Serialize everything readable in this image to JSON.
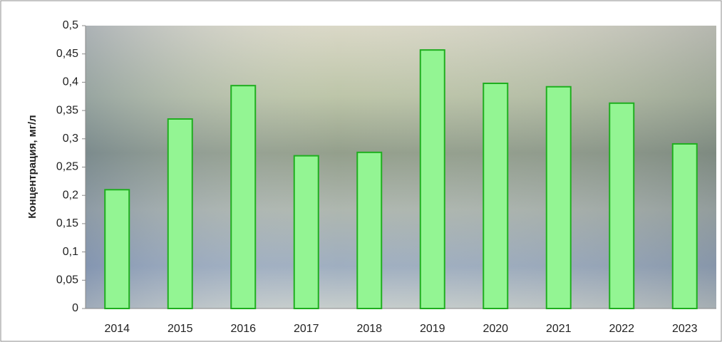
{
  "chart_data": {
    "type": "bar",
    "y_label": "Концентрация, мг/л",
    "categories": [
      "2014",
      "2015",
      "2016",
      "2017",
      "2018",
      "2019",
      "2020",
      "2021",
      "2022",
      "2023"
    ],
    "values": [
      0.21,
      0.335,
      0.394,
      0.27,
      0.276,
      0.457,
      0.398,
      0.392,
      0.363,
      0.291
    ],
    "color": "#93f593",
    "edge_color": "#1fae1f",
    "ylim": [
      0,
      0.5
    ],
    "yticks": [
      0,
      {
        "value": 0.05,
        "label": "0,05"
      },
      {
        "value": 0.1,
        "label": "0,1"
      },
      {
        "value": 0.15,
        "label": "0,15"
      },
      {
        "value": 0.2,
        "label": "0,2"
      },
      {
        "value": 0.25,
        "label": "0,25"
      },
      {
        "value": 0.3,
        "label": "0,3"
      },
      {
        "value": 0.35,
        "label": "0,35"
      },
      {
        "value": 0.4,
        "label": "0,4"
      },
      {
        "value": 0.45,
        "label": "0,45"
      },
      {
        "value": 0.5,
        "label": "0,5"
      }
    ]
  }
}
